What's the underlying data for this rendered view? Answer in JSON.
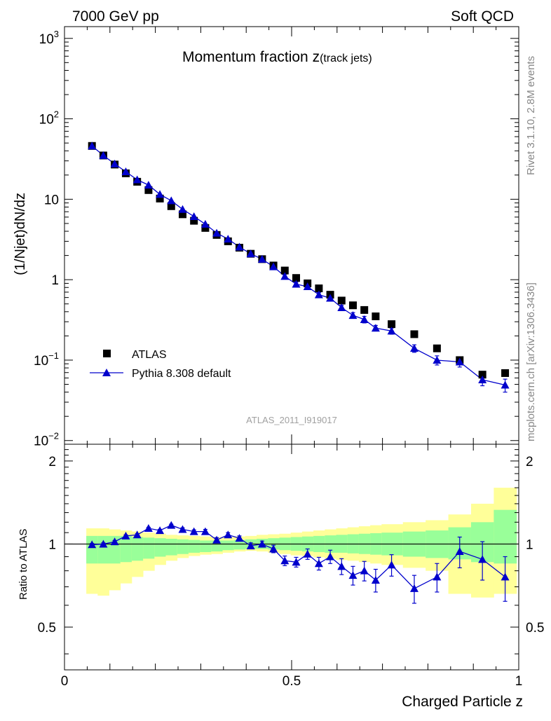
{
  "header": {
    "left": "7000 GeV pp",
    "right": "Soft QCD"
  },
  "side_labels": {
    "rivet": "Rivet 3.1.10,  2.8M events",
    "mcplots": "mcplots.cern.ch [arXiv:1306.3436]"
  },
  "chart_data": [
    {
      "type": "scatter",
      "panel": "main",
      "title_main": "Momentum fraction z",
      "title_sub": "(track jets)",
      "analysis_tag": "ATLAS_2011_I919017",
      "ylabel": "(1/Njet)dN/dz",
      "xlabel": "Charged Particle z",
      "yscale": "log",
      "xlim": [
        0,
        1
      ],
      "ylim": [
        0.009,
        1400
      ],
      "y_ticks": [
        {
          "value": 0.01,
          "base": "10",
          "exp": "−2"
        },
        {
          "value": 0.1,
          "base": "10",
          "exp": "−1"
        },
        {
          "value": 1,
          "base": "1",
          "exp": ""
        },
        {
          "value": 10,
          "base": "10",
          "exp": ""
        },
        {
          "value": 100,
          "base": "10",
          "exp": "2"
        },
        {
          "value": 1000,
          "base": "10",
          "exp": "3"
        }
      ],
      "legend_position": "lower-left",
      "series": [
        {
          "name": "ATLAS",
          "marker": "square",
          "color": "#000000",
          "x": [
            0.0605,
            0.0855,
            0.1105,
            0.135,
            0.16,
            0.185,
            0.21,
            0.235,
            0.26,
            0.285,
            0.31,
            0.335,
            0.36,
            0.385,
            0.41,
            0.435,
            0.46,
            0.485,
            0.51,
            0.535,
            0.56,
            0.585,
            0.61,
            0.635,
            0.66,
            0.685,
            0.72,
            0.77,
            0.82,
            0.87,
            0.92,
            0.97
          ],
          "y": [
            46,
            35,
            27,
            21,
            16.5,
            13,
            10.2,
            8.2,
            6.5,
            5.4,
            4.4,
            3.6,
            3.0,
            2.5,
            2.1,
            1.8,
            1.5,
            1.3,
            1.05,
            0.9,
            0.78,
            0.65,
            0.55,
            0.48,
            0.42,
            0.35,
            0.28,
            0.21,
            0.14,
            0.1,
            0.066,
            0.069
          ]
        },
        {
          "name": "Pythia 8.308 default",
          "marker": "triangle",
          "color": "#0000cc",
          "x": [
            0.0605,
            0.0855,
            0.1105,
            0.135,
            0.16,
            0.185,
            0.21,
            0.235,
            0.26,
            0.285,
            0.31,
            0.335,
            0.36,
            0.385,
            0.41,
            0.435,
            0.46,
            0.485,
            0.51,
            0.535,
            0.56,
            0.585,
            0.61,
            0.635,
            0.66,
            0.685,
            0.72,
            0.77,
            0.82,
            0.87,
            0.92,
            0.97
          ],
          "y": [
            46,
            35,
            27.5,
            22,
            17.5,
            15,
            11.5,
            9.6,
            7.5,
            6.1,
            4.9,
            3.8,
            3.2,
            2.55,
            2.1,
            1.8,
            1.45,
            1.1,
            0.88,
            0.82,
            0.65,
            0.59,
            0.45,
            0.36,
            0.32,
            0.25,
            0.23,
            0.14,
            0.1,
            0.095,
            0.057,
            0.049
          ],
          "yerr": [
            0,
            0,
            0,
            0,
            0,
            0,
            0,
            0,
            0,
            0,
            0,
            0,
            0,
            0,
            0,
            0,
            0,
            0.07,
            0.05,
            0.05,
            0.04,
            0.04,
            0.03,
            0.03,
            0.03,
            0.02,
            0.02,
            0.015,
            0.013,
            0.013,
            0.009,
            0.009
          ]
        }
      ]
    },
    {
      "type": "scatter",
      "panel": "ratio",
      "ylabel": "Ratio to ATLAS",
      "xlabel": "Charged Particle z",
      "xlim": [
        0,
        1
      ],
      "ylim": [
        0.35,
        2.3
      ],
      "x_ticks": [
        0,
        0.5,
        1
      ],
      "x_tick_labels": [
        "0",
        "0.5",
        "1"
      ],
      "y_ticks": [
        0.5,
        1,
        2
      ],
      "y_tick_labels": [
        "0.5",
        "1",
        "2"
      ],
      "bands": {
        "bin_edges": [
          0.048,
          0.073,
          0.098,
          0.123,
          0.148,
          0.173,
          0.198,
          0.223,
          0.248,
          0.273,
          0.298,
          0.323,
          0.348,
          0.373,
          0.398,
          0.423,
          0.448,
          0.473,
          0.498,
          0.523,
          0.548,
          0.573,
          0.598,
          0.623,
          0.648,
          0.673,
          0.698,
          0.745,
          0.795,
          0.845,
          0.895,
          0.945,
          0.995
        ],
        "inner_low": [
          0.85,
          0.85,
          0.85,
          0.86,
          0.87,
          0.885,
          0.9,
          0.91,
          0.92,
          0.93,
          0.935,
          0.94,
          0.95,
          0.955,
          0.96,
          0.96,
          0.955,
          0.95,
          0.945,
          0.94,
          0.935,
          0.93,
          0.93,
          0.925,
          0.92,
          0.915,
          0.91,
          0.9,
          0.89,
          0.88,
          0.86,
          0.85
        ],
        "inner_high": [
          1.07,
          1.07,
          1.07,
          1.07,
          1.06,
          1.055,
          1.05,
          1.045,
          1.04,
          1.035,
          1.03,
          1.03,
          1.03,
          1.035,
          1.04,
          1.045,
          1.05,
          1.055,
          1.06,
          1.065,
          1.07,
          1.075,
          1.08,
          1.085,
          1.09,
          1.095,
          1.1,
          1.11,
          1.12,
          1.15,
          1.2,
          1.33
        ],
        "outer_low": [
          0.66,
          0.65,
          0.68,
          0.72,
          0.76,
          0.8,
          0.84,
          0.87,
          0.89,
          0.905,
          0.915,
          0.92,
          0.93,
          0.94,
          0.945,
          0.94,
          0.93,
          0.92,
          0.91,
          0.905,
          0.895,
          0.885,
          0.875,
          0.87,
          0.86,
          0.85,
          0.84,
          0.82,
          0.8,
          0.66,
          0.64,
          0.66
        ],
        "outer_high": [
          1.14,
          1.14,
          1.13,
          1.12,
          1.11,
          1.1,
          1.09,
          1.08,
          1.075,
          1.07,
          1.065,
          1.06,
          1.06,
          1.065,
          1.07,
          1.08,
          1.085,
          1.09,
          1.1,
          1.11,
          1.12,
          1.13,
          1.14,
          1.15,
          1.16,
          1.17,
          1.18,
          1.2,
          1.22,
          1.28,
          1.4,
          1.6
        ],
        "inner_color": "#99ff99",
        "outer_color": "#ffff99"
      },
      "series": [
        {
          "name": "Pythia 8.308 default",
          "marker": "triangle",
          "color": "#0000cc",
          "x": [
            0.0605,
            0.0855,
            0.1105,
            0.135,
            0.16,
            0.185,
            0.21,
            0.235,
            0.26,
            0.285,
            0.31,
            0.335,
            0.36,
            0.385,
            0.41,
            0.435,
            0.46,
            0.485,
            0.51,
            0.535,
            0.56,
            0.585,
            0.61,
            0.635,
            0.66,
            0.685,
            0.72,
            0.77,
            0.82,
            0.87,
            0.92,
            0.97
          ],
          "y": [
            0.995,
            1.0,
            1.02,
            1.07,
            1.08,
            1.14,
            1.12,
            1.17,
            1.13,
            1.11,
            1.11,
            1.035,
            1.08,
            1.05,
            0.985,
            1.0,
            0.96,
            0.87,
            0.86,
            0.92,
            0.85,
            0.9,
            0.83,
            0.77,
            0.8,
            0.74,
            0.84,
            0.69,
            0.76,
            0.94,
            0.88,
            0.76
          ],
          "yerr": [
            0.01,
            0.01,
            0.01,
            0.01,
            0.01,
            0.01,
            0.01,
            0.01,
            0.015,
            0.015,
            0.02,
            0.02,
            0.02,
            0.02,
            0.025,
            0.025,
            0.03,
            0.035,
            0.035,
            0.04,
            0.045,
            0.05,
            0.055,
            0.06,
            0.065,
            0.07,
            0.075,
            0.08,
            0.09,
            0.12,
            0.14,
            0.14
          ]
        }
      ],
      "reference_line": 1
    }
  ]
}
